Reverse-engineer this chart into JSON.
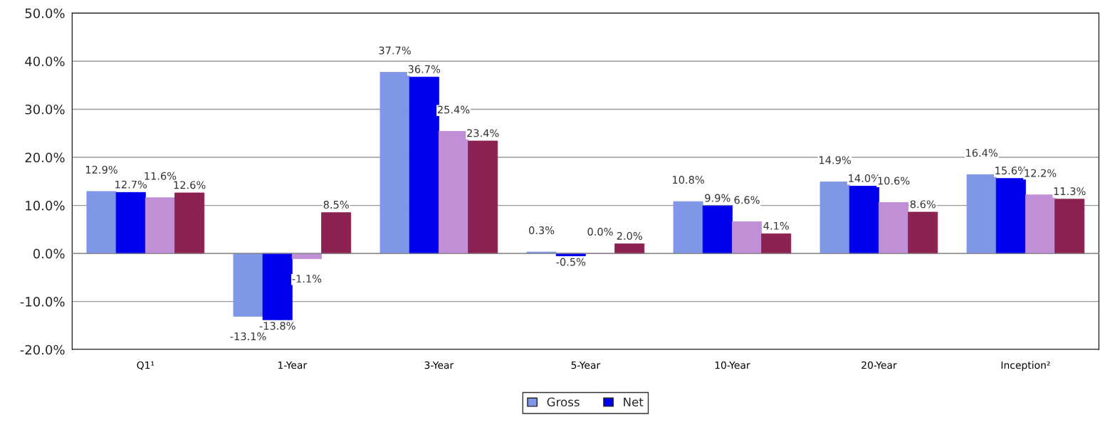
{
  "chart_data": {
    "type": "bar",
    "categories": [
      "Q1¹",
      "1-Year",
      "3-Year",
      "5-Year",
      "10-Year",
      "20-Year",
      "Inception²"
    ],
    "series": [
      {
        "name": "Gross",
        "color": "#8096e6",
        "values": [
          12.9,
          -13.1,
          37.7,
          0.3,
          10.8,
          14.9,
          16.4
        ],
        "value_labels": [
          "12.9%",
          "-13.1%",
          "37.7%",
          "0.3%",
          "10.8%",
          "14.9%",
          "16.4%"
        ]
      },
      {
        "name": "Net",
        "color": "#0000ee",
        "values": [
          12.7,
          -13.8,
          36.7,
          -0.5,
          9.9,
          14.0,
          15.6
        ],
        "value_labels": [
          "12.7%",
          "-13.8%",
          "36.7%",
          "-0.5%",
          "9.9%",
          "14.0%",
          "15.6%"
        ]
      },
      {
        "color": "#c08fd6",
        "values": [
          11.6,
          -1.1,
          25.4,
          0.0,
          6.6,
          10.6,
          12.2
        ],
        "value_labels": [
          "11.6%",
          "-1.1%",
          "25.4%",
          "0.0%",
          "6.6%",
          "10.6%",
          "12.2%"
        ]
      },
      {
        "color": "#8b2252",
        "values": [
          12.6,
          8.5,
          23.4,
          2.0,
          4.1,
          8.6,
          11.3
        ],
        "value_labels": [
          "12.6%",
          "8.5%",
          "23.4%",
          "2.0%",
          "4.1%",
          "8.6%",
          "11.3%"
        ]
      }
    ],
    "ylim": [
      -20,
      50
    ],
    "yticks": [
      {
        "value": -20,
        "label": "-20.0%"
      },
      {
        "value": -10,
        "label": "-10.0%"
      },
      {
        "value": 0,
        "label": "0.0%"
      },
      {
        "value": 10,
        "label": "10.0%"
      },
      {
        "value": 20,
        "label": "20.0%"
      },
      {
        "value": 30,
        "label": "30.0%"
      },
      {
        "value": 40,
        "label": "40.0%"
      },
      {
        "value": 50,
        "label": "50.0%"
      }
    ],
    "grid": "y",
    "legend": "bottom"
  }
}
